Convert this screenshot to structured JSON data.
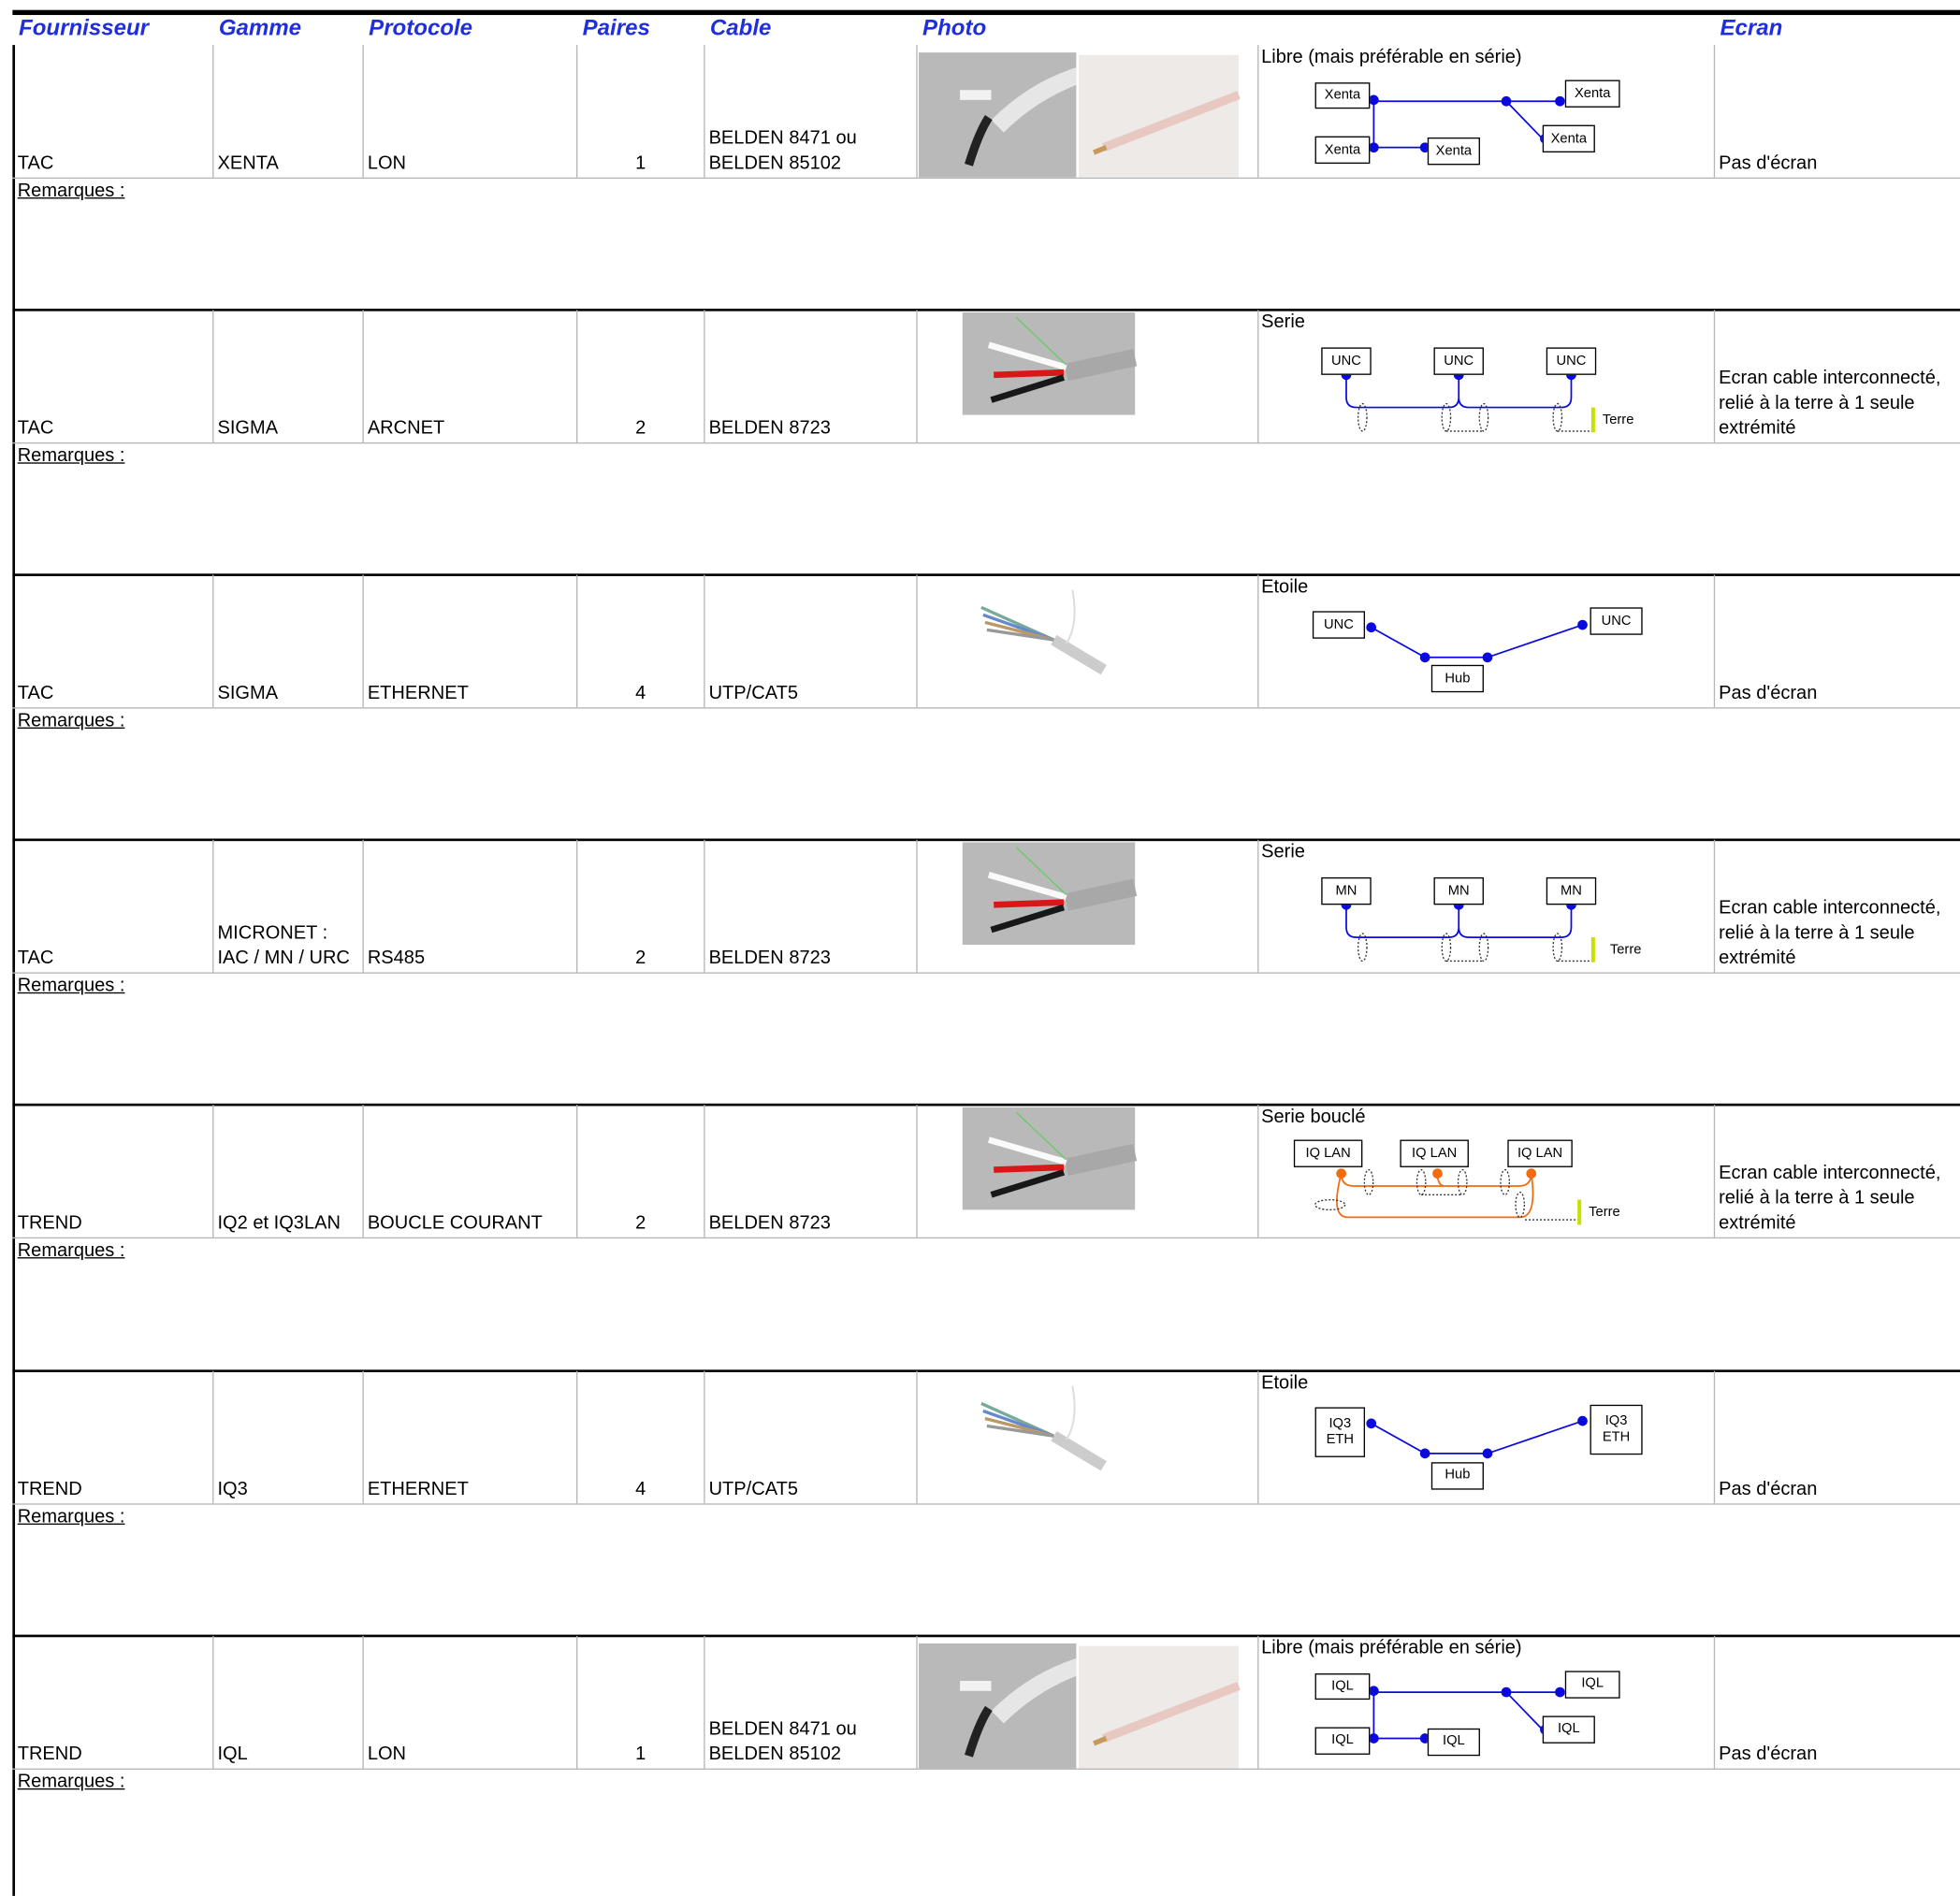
{
  "header": {
    "columns": [
      "Fournisseur",
      "Gamme",
      "Protocole",
      "Paires",
      "Cable",
      "Photo",
      "Ecran"
    ]
  },
  "rows": [
    {
      "supplier": "TAC",
      "range": "XENTA",
      "protocol": "LON",
      "pairs": 1,
      "cable": "BELDEN 8471 ou\nBELDEN 85102",
      "topology": {
        "title": "Libre (mais préférable en série)",
        "nodes": [
          "Xenta",
          "Xenta",
          "Xenta",
          "Xenta",
          "Xenta"
        ]
      },
      "screen": "Pas d'écran",
      "remarks_label": "Remarques :"
    },
    {
      "supplier": "TAC",
      "range": "SIGMA",
      "protocol": "ARCNET",
      "pairs": 2,
      "cable": "BELDEN 8723",
      "topology": {
        "title": "Serie",
        "nodes": [
          "UNC",
          "UNC",
          "UNC"
        ],
        "ground": "Terre"
      },
      "screen": "Ecran cable interconnecté, relié à la terre à 1 seule extrémité",
      "remarks_label": "Remarques :"
    },
    {
      "supplier": "TAC",
      "range": "SIGMA",
      "protocol": "ETHERNET",
      "pairs": 4,
      "cable": "UTP/CAT5",
      "topology": {
        "title": "Etoile",
        "nodes": [
          "UNC",
          "UNC",
          "Hub"
        ]
      },
      "screen": "Pas d'écran",
      "remarks_label": "Remarques :"
    },
    {
      "supplier": "TAC",
      "range": "MICRONET :\nIAC / MN / URC",
      "protocol": "RS485",
      "pairs": 2,
      "cable": "BELDEN 8723",
      "topology": {
        "title": "Serie",
        "nodes": [
          "MN",
          "MN",
          "MN"
        ],
        "ground": "Terre"
      },
      "screen": "Ecran cable interconnecté, relié à la terre à 1 seule extrémité",
      "remarks_label": "Remarques :"
    },
    {
      "supplier": "TREND",
      "range": "IQ2 et IQ3LAN",
      "protocol": "BOUCLE COURANT",
      "pairs": 2,
      "cable": "BELDEN 8723",
      "topology": {
        "title": "Serie bouclé",
        "nodes": [
          "IQ LAN",
          "IQ LAN",
          "IQ LAN"
        ],
        "ground": "Terre"
      },
      "screen": "Ecran cable interconnecté, relié à la terre à 1 seule extrémité",
      "remarks_label": "Remarques :"
    },
    {
      "supplier": "TREND",
      "range": "IQ3",
      "protocol": "ETHERNET",
      "pairs": 4,
      "cable": "UTP/CAT5",
      "topology": {
        "title": "Etoile",
        "nodes": [
          "IQ3\nETH",
          "IQ3\nETH",
          "Hub"
        ]
      },
      "screen": "Pas d'écran",
      "remarks_label": "Remarques :"
    },
    {
      "supplier": "TREND",
      "range": "IQL",
      "protocol": "LON",
      "pairs": 1,
      "cable": "BELDEN 8471 ou\nBELDEN 85102",
      "topology": {
        "title": "Libre (mais préférable en série)",
        "nodes": [
          "IQL",
          "IQL",
          "IQL",
          "IQL",
          "IQL"
        ]
      },
      "screen": "Pas d'écran",
      "remarks_label": "Remarques :"
    }
  ]
}
